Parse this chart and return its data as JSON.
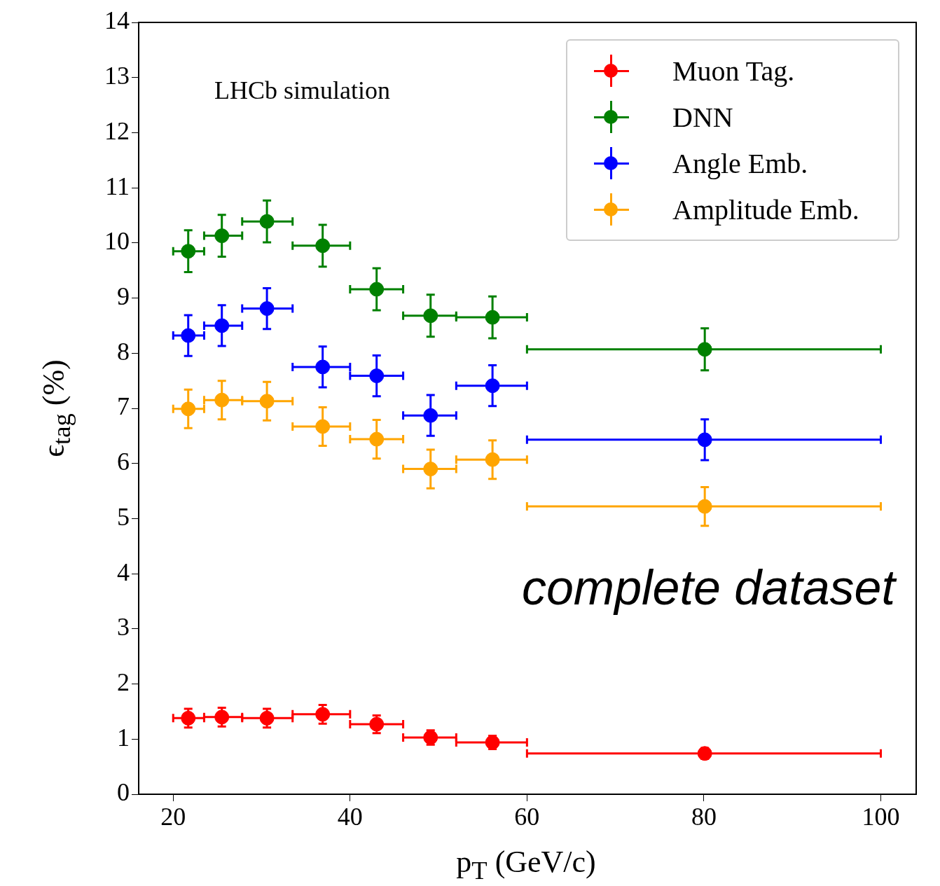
{
  "chart_data": {
    "type": "scatter",
    "xlabel": "p$_{T}$ (GeV/c)",
    "ylabel": "ϵ$_{tag}$ (%)",
    "xlim": [
      16.1,
      104
    ],
    "xticks": [
      20,
      40,
      60,
      80,
      100
    ],
    "ylim": [
      0,
      14
    ],
    "yticks": [
      0,
      1,
      2,
      3,
      4,
      5,
      6,
      7,
      8,
      9,
      10,
      11,
      12,
      13,
      14
    ],
    "grid": false,
    "legend": "top right",
    "marker": "circle",
    "annotations": [
      "LHCb simulation",
      "complete dataset"
    ],
    "x": [
      21.7,
      25.5,
      30.6,
      36.9,
      43.0,
      49.1,
      56.1,
      80.1
    ],
    "series": [
      {
        "name": "Muon Tag.",
        "color": "#ff0000",
        "values": [
          1.38,
          1.4,
          1.38,
          1.45,
          1.27,
          1.03,
          0.94,
          0.74
        ],
        "errors": [
          0.17,
          0.17,
          0.17,
          0.17,
          0.16,
          0.13,
          0.12,
          0.1
        ],
        "xerrors": [
          [
            20,
            23.5
          ],
          [
            23.5,
            27.8
          ],
          [
            27.8,
            33.5
          ],
          [
            33.5,
            40
          ],
          [
            40,
            46
          ],
          [
            46,
            52
          ],
          [
            52,
            60
          ],
          [
            60,
            100
          ]
        ]
      },
      {
        "name": "DNN",
        "color": "#008000",
        "values": [
          9.85,
          10.13,
          10.39,
          9.95,
          9.16,
          8.68,
          8.65,
          8.07
        ],
        "errors": [
          0.38,
          0.38,
          0.38,
          0.38,
          0.38,
          0.38,
          0.38,
          0.38
        ],
        "xerrors": [
          [
            20,
            23.5
          ],
          [
            23.5,
            27.8
          ],
          [
            27.8,
            33.5
          ],
          [
            33.5,
            40
          ],
          [
            40,
            46
          ],
          [
            46,
            52
          ],
          [
            52,
            60
          ],
          [
            60,
            100
          ]
        ]
      },
      {
        "name": "Angle Emb.",
        "color": "#0000ff",
        "values": [
          8.32,
          8.5,
          8.81,
          7.75,
          7.59,
          6.87,
          7.41,
          6.43
        ],
        "errors": [
          0.37,
          0.37,
          0.37,
          0.37,
          0.37,
          0.37,
          0.37,
          0.37
        ],
        "xerrors": [
          [
            20,
            23.5
          ],
          [
            23.5,
            27.8
          ],
          [
            27.8,
            33.5
          ],
          [
            33.5,
            40
          ],
          [
            40,
            46
          ],
          [
            46,
            52
          ],
          [
            52,
            60
          ],
          [
            60,
            100
          ]
        ]
      },
      {
        "name": "Amplitude Emb.",
        "color": "#ffa500",
        "values": [
          6.99,
          7.15,
          7.13,
          6.67,
          6.44,
          5.9,
          6.07,
          5.22
        ],
        "errors": [
          0.35,
          0.35,
          0.35,
          0.35,
          0.35,
          0.35,
          0.35,
          0.35
        ],
        "xerrors": [
          [
            20,
            23.5
          ],
          [
            23.5,
            27.8
          ],
          [
            27.8,
            33.5
          ],
          [
            33.5,
            40
          ],
          [
            40,
            46
          ],
          [
            46,
            52
          ],
          [
            52,
            60
          ],
          [
            60,
            100
          ]
        ]
      }
    ]
  }
}
